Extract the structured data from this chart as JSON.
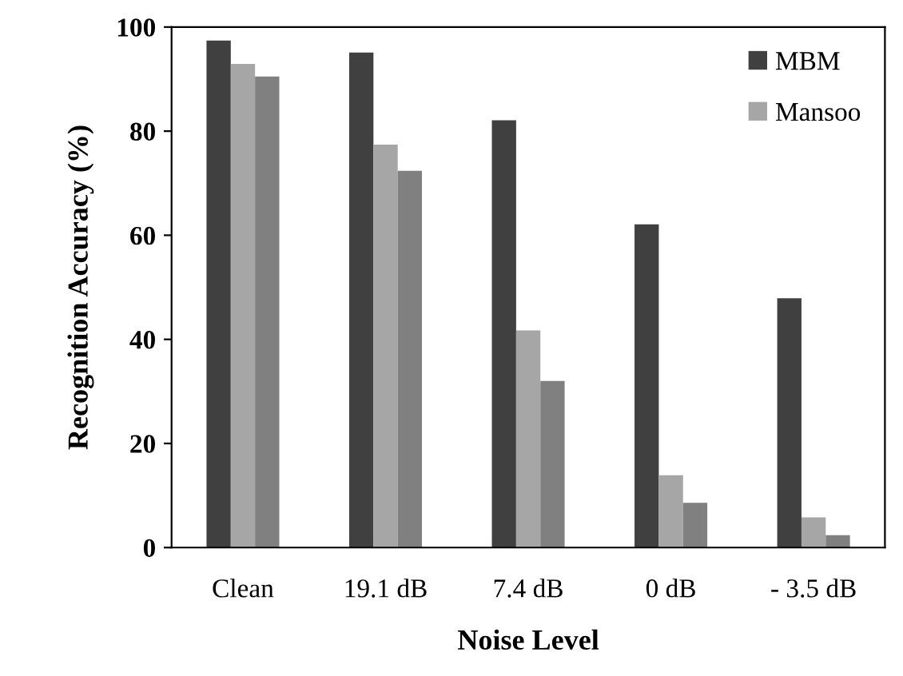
{
  "chart_data": {
    "type": "bar",
    "xlabel": "Noise Level",
    "ylabel": "Recognition Accuracy (%)",
    "categories": [
      "Clean",
      "19.1 dB",
      "7.4 dB",
      "0 dB",
      "- 3.5 dB"
    ],
    "series": [
      {
        "name": "MBM",
        "color": "#404040",
        "values": [
          97.4,
          95.1,
          82.1,
          62.1,
          47.9
        ]
      },
      {
        "name": "Mansoo",
        "color": "#a6a6a6",
        "values": [
          92.9,
          77.4,
          41.7,
          13.9,
          5.8
        ]
      },
      {
        "color": "#808080",
        "values": [
          90.5,
          72.4,
          32.0,
          8.6,
          2.4
        ]
      }
    ],
    "ylim": [
      0,
      100
    ],
    "yticks": [
      0,
      20,
      40,
      60,
      80,
      100
    ],
    "grid": false,
    "legend": "top right"
  }
}
